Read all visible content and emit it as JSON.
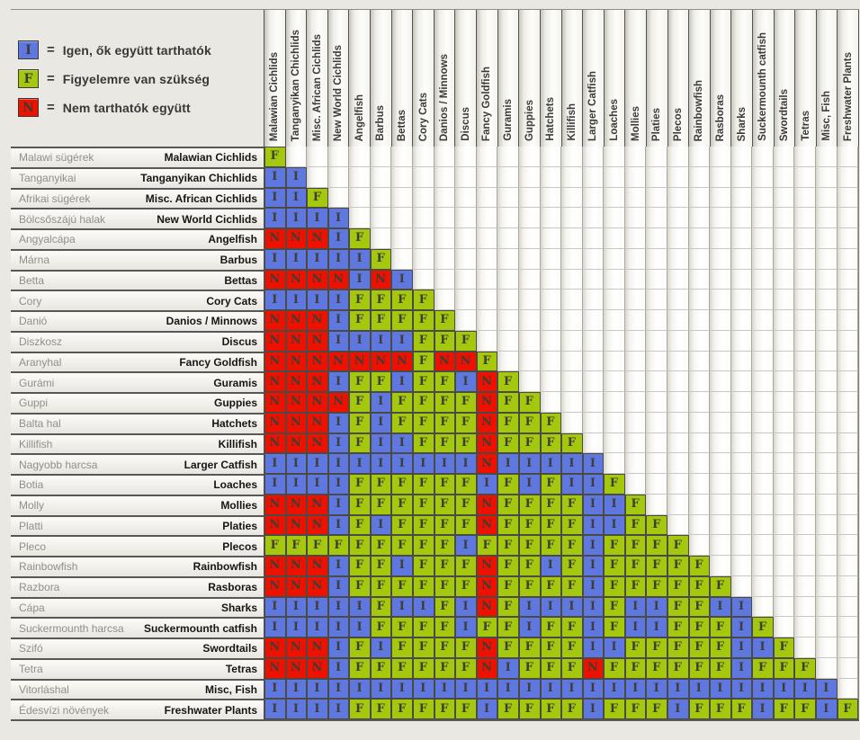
{
  "legend": {
    "equals": "=",
    "colors": {
      "I": "#5f78e0",
      "F": "#a4c80e",
      "N": "#ee1100"
    },
    "items": [
      {
        "code": "I",
        "label": "Igen, ők együtt tarthatók"
      },
      {
        "code": "F",
        "label": "Figyelemre van szükség"
      },
      {
        "code": "N",
        "label": "Nem tarthatók együtt"
      }
    ]
  },
  "chart_data": {
    "type": "heatmap",
    "description": "Lower-triangular fish compatibility matrix; cell codes: I = yes can be kept together, F = attention needed, N = cannot be kept together",
    "value_meanings": {
      "I": "Igen, ők együtt tarthatók",
      "F": "Figyelemre van szükség",
      "N": "Nem tarthatók együtt"
    },
    "columns": [
      "Malawian Cichlids",
      "Tanganyikan Chichlids",
      "Misc. African Cichlids",
      "New World Cichlids",
      "Angelfish",
      "Barbus",
      "Bettas",
      "Cory Cats",
      "Danios / Minnows",
      "Discus",
      "Fancy Goldfish",
      "Guramis",
      "Guppies",
      "Hatchets",
      "Killifish",
      "Larger Catfish",
      "Loaches",
      "Mollies",
      "Platies",
      "Plecos",
      "Rainbowfish",
      "Rasboras",
      "Sharks",
      "Suckermounth catfish",
      "Swordtails",
      "Tetras",
      "Misc, Fish",
      "Freshwater Plants"
    ],
    "rows": [
      {
        "hu": "Malawi sügérek",
        "en": "Malawian Cichlids",
        "cells": "F"
      },
      {
        "hu": "Tanganyikai",
        "en": "Tanganyikan Chichlids",
        "cells": "II"
      },
      {
        "hu": "Afrikai sügérek",
        "en": "Misc. African Cichlids",
        "cells": "IIF"
      },
      {
        "hu": "Bölcsőszájú halak",
        "en": "New World Cichlids",
        "cells": "IIII"
      },
      {
        "hu": "Angyalcápa",
        "en": "Angelfish",
        "cells": "NNNIF"
      },
      {
        "hu": "Márna",
        "en": "Barbus",
        "cells": "IIIIIF"
      },
      {
        "hu": "Betta",
        "en": "Bettas",
        "cells": "NNNNINI"
      },
      {
        "hu": "Cory",
        "en": "Cory Cats",
        "cells": "IIIIFFFF"
      },
      {
        "hu": "Danió",
        "en": "Danios / Minnows",
        "cells": "NNNIFFFFF"
      },
      {
        "hu": "Diszkosz",
        "en": "Discus",
        "cells": "NNNIIIIFFF"
      },
      {
        "hu": "Aranyhal",
        "en": "Fancy Goldfish",
        "cells": "NNNNNNNFNNF"
      },
      {
        "hu": "Gurámi",
        "en": "Guramis",
        "cells": "NNNIFFIFFINF"
      },
      {
        "hu": "Guppi",
        "en": "Guppies",
        "cells": "NNNNFIFFFFNFF"
      },
      {
        "hu": "Balta hal",
        "en": "Hatchets",
        "cells": "NNNIFIFFFFNFFF"
      },
      {
        "hu": "Killifish",
        "en": "Killifish",
        "cells": "NNNIFIIFFFNFFFF"
      },
      {
        "hu": "Nagyobb harcsa",
        "en": "Larger Catfish",
        "cells": "IIIIIIIIIINIIIII"
      },
      {
        "hu": "Botia",
        "en": "Loaches",
        "cells": "IIIIFFFFFFIFIFIIF"
      },
      {
        "hu": "Molly",
        "en": "Mollies",
        "cells": "NNNIFFFFFFNFFFFIIF"
      },
      {
        "hu": "Platti",
        "en": "Platies",
        "cells": "NNNIFIFFFFNFFFFIIFF"
      },
      {
        "hu": "Pleco",
        "en": "Plecos",
        "cells": "FFFFFFFFFIFFFFFIFFFF"
      },
      {
        "hu": "Rainbowfish",
        "en": "Rainbowfish",
        "cells": "NNNIFFIFFFNFFIFIFFFFF"
      },
      {
        "hu": "Razbora",
        "en": "Rasboras",
        "cells": "NNNIFFFFFFNFFFFIFFFFFF"
      },
      {
        "hu": "Cápa",
        "en": "Sharks",
        "cells": "IIIIIFIIFINFIIIIFIIFFII"
      },
      {
        "hu": "Suckermounth harcsa",
        "en": "Suckermounth catfish",
        "cells": "IIIIIFFFFIFFIFFIFIIFFFIF"
      },
      {
        "hu": "Szifó",
        "en": "Swordtails",
        "cells": "NNNIFIFFFFNFFFFIIFFFFFIIF"
      },
      {
        "hu": "Tetra",
        "en": "Tetras",
        "cells": "NNNIFFFFFFNIFFFNFFFFFFIFFF"
      },
      {
        "hu": "Vitorláshal",
        "en": "Misc, Fish",
        "cells": "IIIIIIIIIIIIIIIIIIIIIIIIIII"
      },
      {
        "hu": "Édesvízi növények",
        "en": "Freshwater Plants",
        "cells": "IIIIFFFFFFIFFFFIFFFIFFFIFFIF"
      }
    ]
  }
}
